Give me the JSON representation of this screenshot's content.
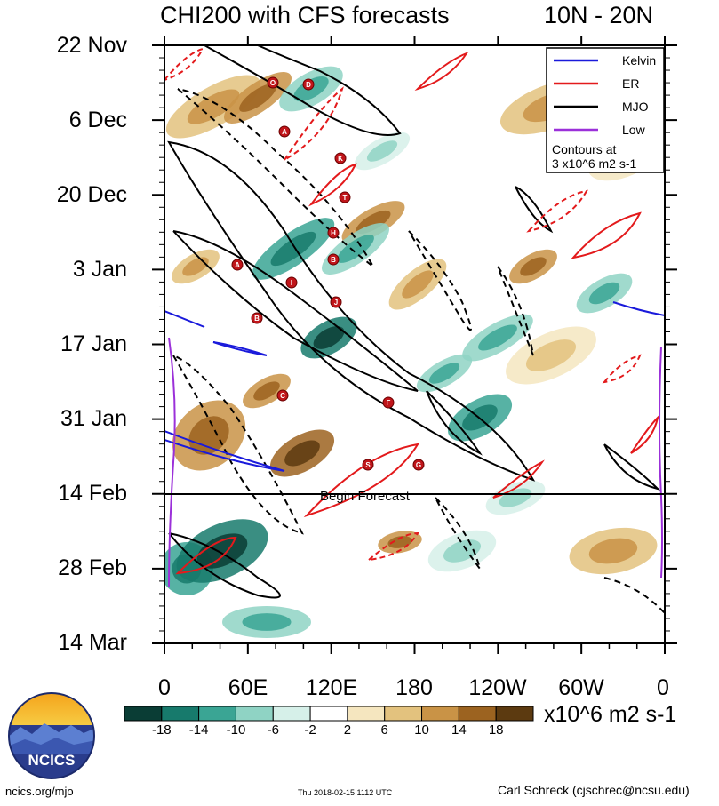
{
  "header": {
    "title": "CHI200 with CFS forecasts",
    "region": "10N - 20N"
  },
  "chart_data": {
    "type": "heatmap",
    "title": "CHI200 with CFS forecasts",
    "subtitle": "10N - 20N",
    "x_tick_labels": [
      "0",
      "60E",
      "120E",
      "180",
      "120W",
      "60W",
      "0"
    ],
    "x_ticks_deg": [
      0,
      60,
      120,
      180,
      240,
      300,
      360
    ],
    "y_tick_labels": [
      "22 Nov",
      "6 Dec",
      "20 Dec",
      "3 Jan",
      "17 Jan",
      "31 Jan",
      "14 Feb",
      "28 Feb",
      "14 Mar"
    ],
    "forecast_start_label": "Begin Forecast",
    "forecast_start_date": "14 Feb",
    "legend": {
      "placement": "top-right",
      "entries": [
        {
          "name": "Kelvin",
          "color": "#1a1adb"
        },
        {
          "name": "ER",
          "color": "#e31a1c"
        },
        {
          "name": "MJO",
          "color": "#000000"
        },
        {
          "name": "Low",
          "color": "#9b30d9"
        }
      ],
      "note_line1": "Contours at",
      "note_line2": "3 x10^6 m2 s-1"
    },
    "colorbar": {
      "labels": [
        "-18",
        "-14",
        "-10",
        "-6",
        "-2",
        "2",
        "6",
        "10",
        "14",
        "18"
      ],
      "unit": "x10^6 m2 s-1",
      "colors": [
        "#0a3d35",
        "#177a6c",
        "#3aa594",
        "#8fd3c4",
        "#d6f0e9",
        "#ffffff",
        "#f5e6bf",
        "#e3c27e",
        "#c99346",
        "#9c6320",
        "#5c3a10"
      ]
    },
    "storms": [
      "O",
      "D",
      "A",
      "K",
      "T",
      "H",
      "B",
      "A",
      "I",
      "J",
      "B",
      "C",
      "F",
      "S",
      "G"
    ]
  },
  "footer": {
    "left": "ncics.org/mjo",
    "middle": "Thu 2018-02-15 1112 UTC",
    "right": "Carl Schreck (cjschrec@ncsu.edu)",
    "logo_text": "NCICS"
  }
}
